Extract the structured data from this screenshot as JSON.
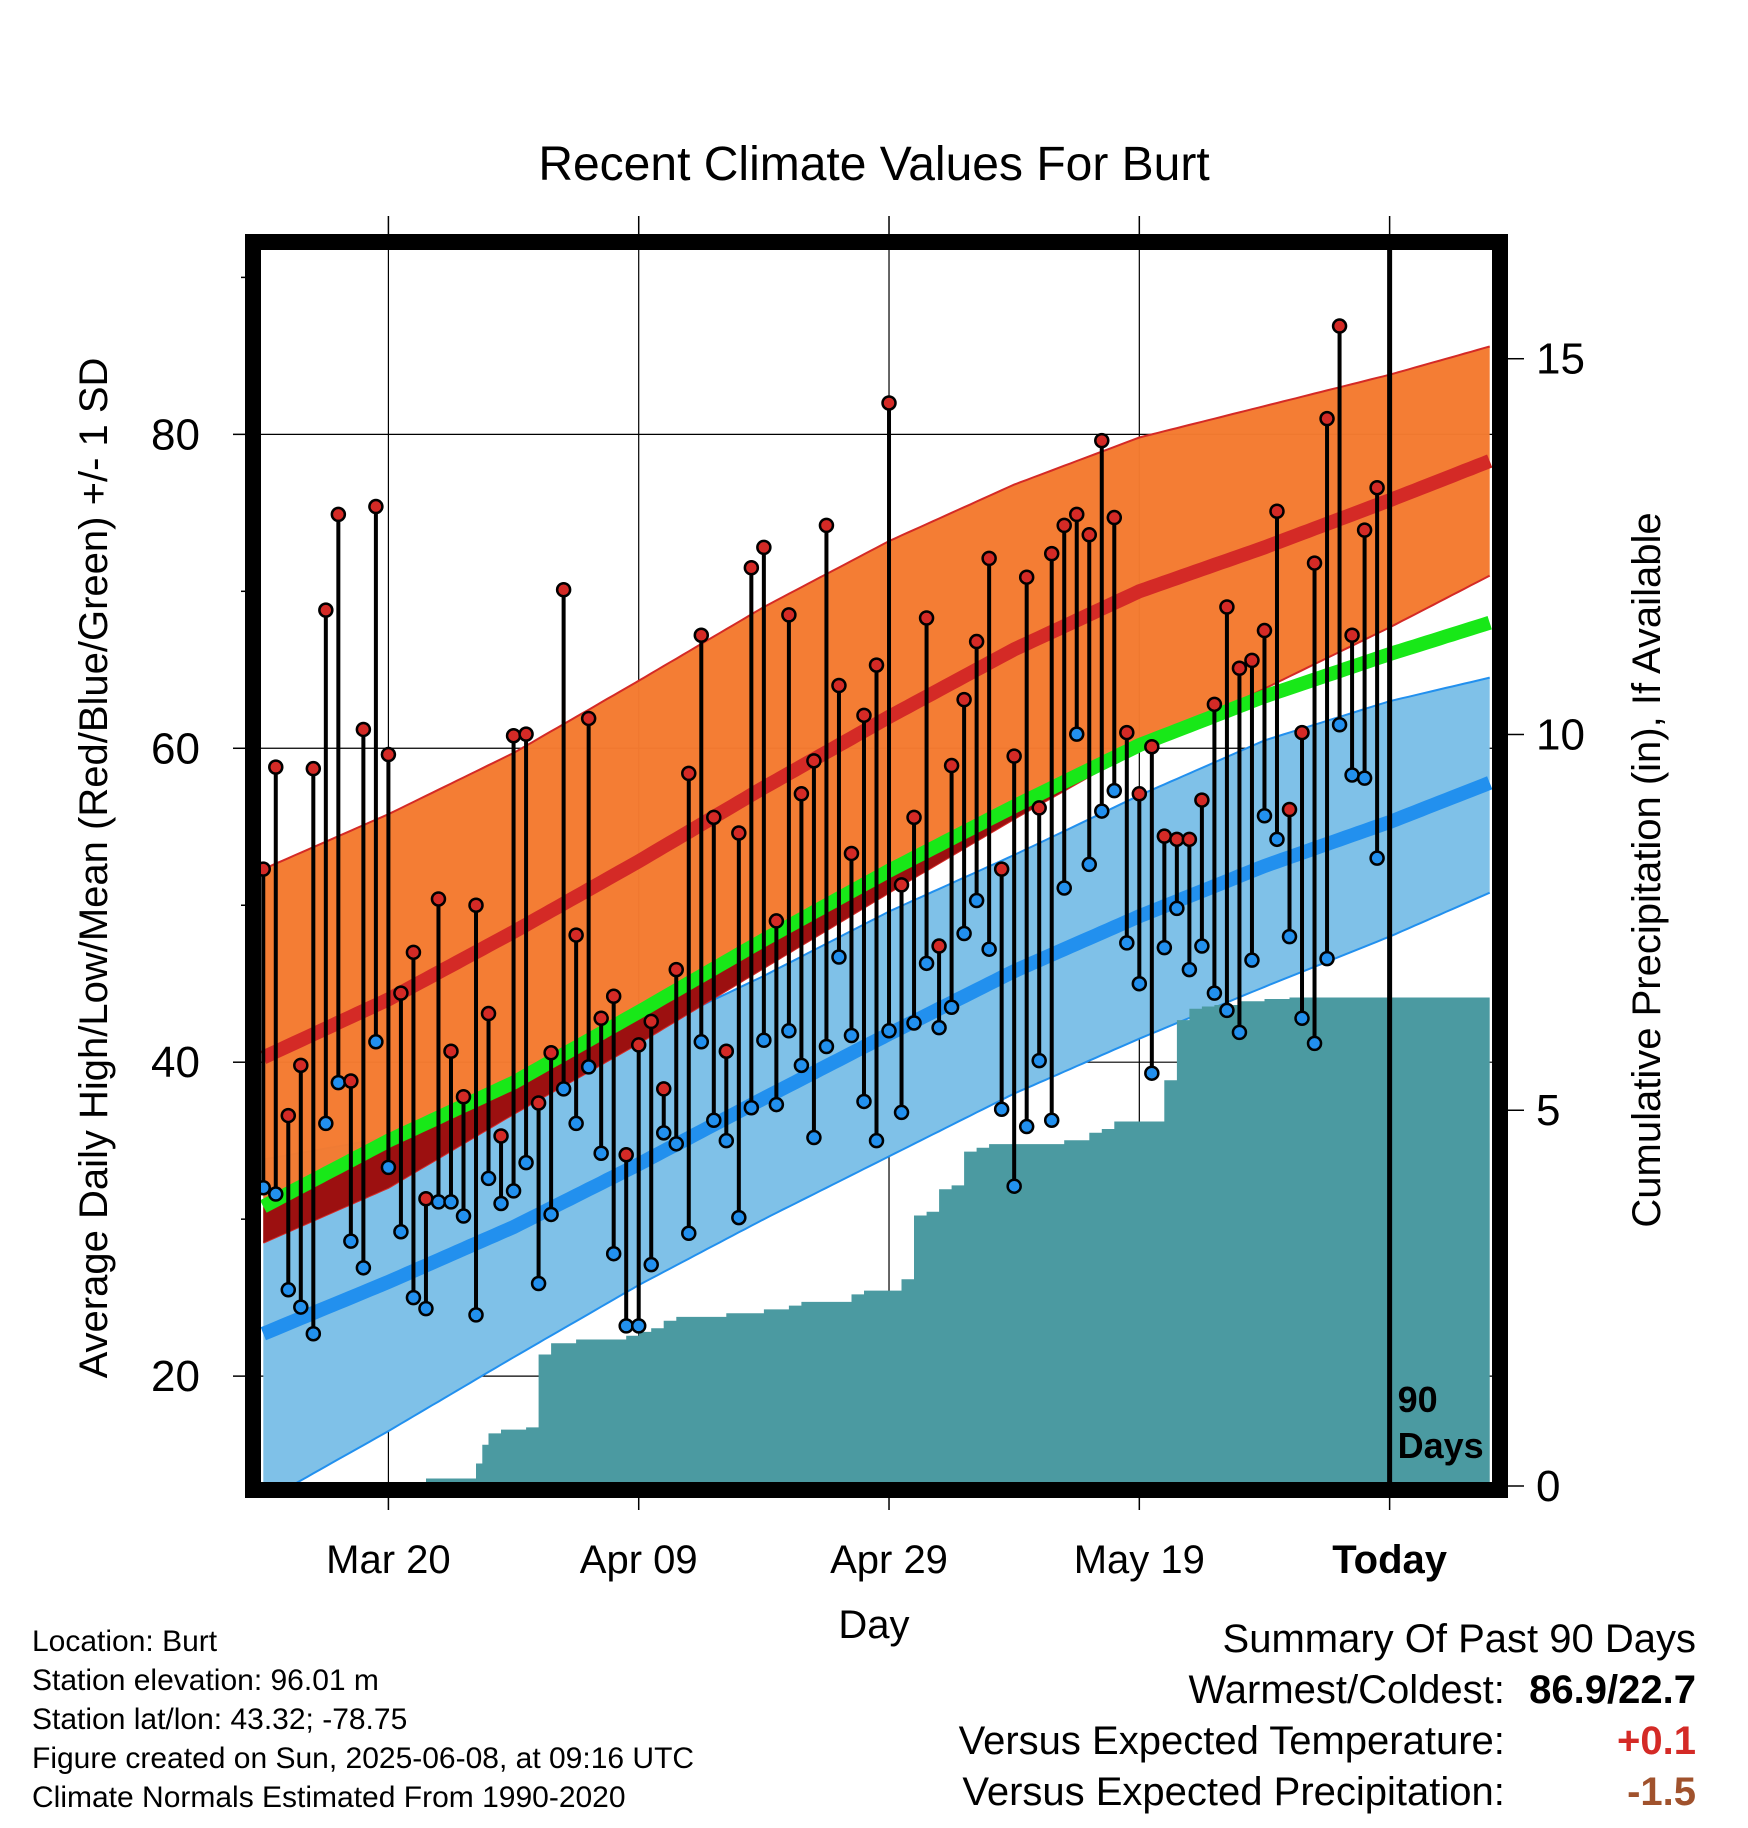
{
  "chart_data": {
    "type": "line",
    "title": "Recent Climate Values For Burt",
    "xlabel": "Day",
    "ylabel": "Average Daily High/Low/Mean (Red/Blue/Green) +/- 1 SD",
    "y2label": "Cumulative Precipitation (in), If Available",
    "ylim": [
      13,
      92
    ],
    "y2lim": [
      0,
      16.5
    ],
    "xlim": [
      -10.5,
      88.5
    ],
    "yticks": [
      20,
      40,
      60,
      80
    ],
    "y2ticks": [
      0,
      5,
      10,
      15
    ],
    "xticks": [
      {
        "day": 0,
        "label": "Mar 20"
      },
      {
        "day": 20,
        "label": "Apr 09"
      },
      {
        "day": 40,
        "label": "Apr 29"
      },
      {
        "day": 60,
        "label": "May 19"
      },
      {
        "day": 80,
        "label": "Today"
      }
    ],
    "window_label": "90 Days",
    "grid": true,
    "normals": {
      "days": [
        -10,
        0,
        10,
        20,
        30,
        40,
        50,
        60,
        70,
        80,
        88
      ],
      "high_mean": [
        40.3,
        44.0,
        48.3,
        52.8,
        57.5,
        62.0,
        66.3,
        70.0,
        72.8,
        75.8,
        78.3
      ],
      "high_upper": [
        52.3,
        55.8,
        59.7,
        64.3,
        69.0,
        73.2,
        76.8,
        79.8,
        81.8,
        83.8,
        85.6
      ],
      "high_lower": [
        28.5,
        32.0,
        36.7,
        41.2,
        46.0,
        50.8,
        55.5,
        60.0,
        63.8,
        67.7,
        71.0
      ],
      "mean": [
        30.8,
        35.0,
        38.7,
        43.2,
        47.8,
        52.2,
        56.3,
        60.2,
        63.3,
        66.0,
        68.0
      ],
      "low_mean": [
        22.7,
        26.0,
        29.5,
        33.5,
        37.7,
        41.8,
        45.8,
        49.3,
        52.5,
        55.3,
        57.8
      ],
      "low_upper": [
        33.8,
        35.2,
        37.8,
        41.7,
        45.5,
        49.6,
        53.2,
        57.0,
        60.5,
        63.0,
        64.5
      ],
      "low_lower": [
        12.0,
        16.5,
        21.2,
        25.8,
        30.0,
        34.0,
        38.0,
        41.5,
        44.8,
        48.0,
        50.8
      ]
    },
    "series": [
      {
        "name": "High",
        "values": [
          52.3,
          58.8,
          36.6,
          39.8,
          58.7,
          68.8,
          74.9,
          38.8,
          61.2,
          75.4,
          59.6,
          44.4,
          47.0,
          31.3,
          50.4,
          40.7,
          37.8,
          50.0,
          43.1,
          35.3,
          60.8,
          60.9,
          37.4,
          40.6,
          70.1,
          48.1,
          61.9,
          42.8,
          44.2,
          34.1,
          41.1,
          42.6,
          38.3,
          45.9,
          58.4,
          67.2,
          55.6,
          40.7,
          54.6,
          71.5,
          72.8,
          49.0,
          68.5,
          57.1,
          59.2,
          74.2,
          64.0,
          53.3,
          62.1,
          65.3,
          82.0,
          51.3,
          55.6,
          68.3,
          47.4,
          58.9,
          63.1,
          66.8,
          72.1,
          52.3,
          59.5,
          70.9,
          56.2,
          72.4,
          74.2,
          74.9,
          73.6,
          79.6,
          74.7,
          61.0,
          57.1,
          60.1,
          54.4,
          54.2,
          54.2,
          56.7,
          62.8,
          69.0,
          65.1,
          65.6,
          67.5,
          75.1,
          56.1,
          61.0,
          71.8,
          81.0,
          86.9,
          67.2,
          73.9,
          76.6
        ]
      },
      {
        "name": "Low",
        "values": [
          32.0,
          31.6,
          25.5,
          24.4,
          22.7,
          36.1,
          38.7,
          28.6,
          26.9,
          41.3,
          33.3,
          29.2,
          25.0,
          24.3,
          31.1,
          31.1,
          30.2,
          23.9,
          32.6,
          31.0,
          31.8,
          33.6,
          25.9,
          30.3,
          38.3,
          36.1,
          39.7,
          34.2,
          27.8,
          23.2,
          23.2,
          27.1,
          35.5,
          34.8,
          29.1,
          41.3,
          36.3,
          35.0,
          30.1,
          37.1,
          41.4,
          37.3,
          42.0,
          39.8,
          35.2,
          41.0,
          46.7,
          41.7,
          37.5,
          35.0,
          42.0,
          36.8,
          42.5,
          46.3,
          42.2,
          43.5,
          48.2,
          50.3,
          47.2,
          37.0,
          32.1,
          35.9,
          40.1,
          36.3,
          51.1,
          60.9,
          52.6,
          56.0,
          57.3,
          47.6,
          45.0,
          39.3,
          47.3,
          49.8,
          45.9,
          47.4,
          44.4,
          43.3,
          41.9,
          46.5,
          55.7,
          54.2,
          48.0,
          42.8,
          41.2,
          46.6,
          61.5,
          58.3,
          58.1,
          53.0
        ]
      },
      {
        "name": "Cumulative Precipitation",
        "days": [
          -10,
          0,
          3,
          6,
          7,
          7.5,
          8,
          9,
          10,
          11,
          12,
          13,
          14,
          15,
          16,
          17,
          18,
          19,
          20,
          21,
          22,
          23,
          24,
          25,
          26,
          27,
          28,
          29,
          30,
          31,
          32,
          33,
          34,
          35,
          36,
          37,
          38,
          39,
          40,
          41,
          42,
          43,
          44,
          45,
          46,
          47,
          48,
          49,
          50,
          51,
          52,
          53,
          54,
          55,
          56,
          57,
          58,
          59,
          60,
          61,
          62,
          63,
          64,
          65,
          66,
          68,
          70,
          72,
          74,
          76,
          78,
          80,
          88
        ],
        "values": [
          0.0,
          0.05,
          0.1,
          0.1,
          0.3,
          0.55,
          0.7,
          0.75,
          0.75,
          0.78,
          1.75,
          1.9,
          1.9,
          1.95,
          1.95,
          1.95,
          1.95,
          2.0,
          2.05,
          2.1,
          2.2,
          2.25,
          2.25,
          2.25,
          2.25,
          2.3,
          2.3,
          2.3,
          2.35,
          2.35,
          2.4,
          2.45,
          2.45,
          2.45,
          2.45,
          2.55,
          2.6,
          2.6,
          2.6,
          2.75,
          3.6,
          3.65,
          3.95,
          4.0,
          4.45,
          4.5,
          4.55,
          4.55,
          4.55,
          4.55,
          4.55,
          4.55,
          4.6,
          4.6,
          4.7,
          4.75,
          4.85,
          4.85,
          4.85,
          4.85,
          5.4,
          6.2,
          6.35,
          6.38,
          6.4,
          6.45,
          6.48,
          6.5,
          6.5,
          6.5,
          6.5,
          6.5,
          6.5
        ]
      }
    ],
    "summary": {
      "heading": "Summary Of Past 90 Days",
      "warmest_coldest_label": "Warmest/Coldest:",
      "warmest": "86.9",
      "coldest": "22.7",
      "warmest_coldest": "86.9/22.7",
      "temp_label": "Versus Expected Temperature:",
      "temp_value": "+0.1",
      "precip_label": "Versus Expected Precipitation:",
      "precip_value": "-1.5"
    },
    "info": [
      "Location: Burt",
      "Station elevation: 96.01 m",
      "Station lat/lon: 43.32; -78.75",
      "Figure created on Sun, 2025-06-08, at 09:16 UTC",
      "Climate Normals Estimated From 1990-2020"
    ],
    "colors": {
      "high_band": "#f47a30",
      "high_line": "#d42a26",
      "high_lower_below_mean": "#9c1010",
      "low_band": "#7fc1e8",
      "low_line": "#2290ee",
      "mean_line": "#18e818",
      "precip": "#4b9aa1",
      "high_dot": "#d42a26",
      "low_dot": "#2290ee",
      "temp_value": "#d42a26",
      "precip_value": "#a0522d"
    }
  }
}
